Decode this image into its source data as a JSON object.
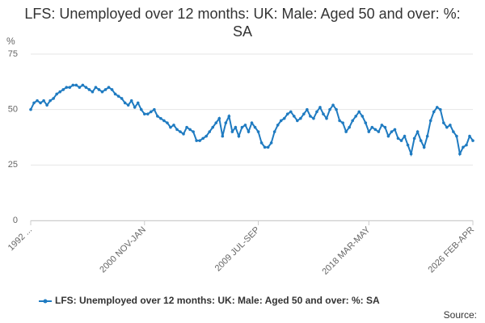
{
  "chart_data": {
    "type": "line",
    "title": "LFS: Unemployed over 12 months: UK: Male: Aged 50 and over: %: SA",
    "y_label": "%",
    "source": "Source:",
    "categories": [
      "1992 ...",
      null,
      null,
      null,
      null,
      null,
      null,
      null,
      null,
      null,
      null,
      null,
      null,
      null,
      null,
      null,
      null,
      null,
      null,
      null,
      null,
      null,
      null,
      null,
      null,
      null,
      null,
      null,
      null,
      null,
      null,
      null,
      null,
      null,
      null,
      "2000 NOV-JAN",
      null,
      null,
      null,
      null,
      null,
      null,
      null,
      null,
      null,
      null,
      null,
      null,
      null,
      null,
      null,
      null,
      null,
      null,
      null,
      null,
      null,
      null,
      null,
      null,
      null,
      null,
      null,
      null,
      null,
      null,
      null,
      null,
      null,
      null,
      "2009 JUL-SEP",
      null,
      null,
      null,
      null,
      null,
      null,
      null,
      null,
      null,
      null,
      null,
      null,
      null,
      null,
      null,
      null,
      null,
      null,
      null,
      null,
      null,
      null,
      null,
      null,
      null,
      null,
      null,
      null,
      null,
      null,
      null,
      null,
      null,
      "2018 MAR-MAY",
      null,
      null,
      null,
      null,
      null,
      null,
      null,
      null,
      null,
      null,
      null,
      null,
      null,
      null,
      null,
      null,
      null,
      null,
      null,
      null,
      null,
      null,
      null,
      null,
      null,
      null,
      null,
      null,
      null,
      null,
      null,
      "2026 FEB-APR"
    ],
    "series": [
      {
        "name": "LFS: Unemployed over 12 months: UK: Male: Aged 50 and over: %: SA",
        "color": "#1f7bc1",
        "values": [
          50,
          53,
          54,
          53,
          54,
          52,
          54,
          55,
          57,
          58,
          59,
          60,
          60,
          61,
          61,
          60,
          61,
          60,
          59,
          58,
          60,
          59,
          58,
          59,
          60,
          59,
          57,
          56,
          55,
          53,
          52,
          54,
          51,
          53,
          50,
          48,
          48,
          49,
          50,
          47,
          46,
          45,
          44,
          42,
          43,
          41,
          40,
          39,
          42,
          41,
          40,
          36,
          36,
          37,
          38,
          40,
          42,
          44,
          46,
          38,
          44,
          47,
          40,
          42,
          38,
          42,
          43,
          40,
          44,
          42,
          40,
          35,
          33,
          33,
          35,
          40,
          43,
          45,
          46,
          48,
          49,
          47,
          45,
          46,
          48,
          50,
          47,
          46,
          49,
          51,
          48,
          46,
          50,
          52,
          50,
          45,
          44,
          40,
          42,
          45,
          47,
          49,
          47,
          44,
          40,
          42,
          41,
          40,
          43,
          42,
          38,
          40,
          41,
          37,
          36,
          38,
          34,
          30,
          37,
          40,
          36,
          33,
          38,
          45,
          49,
          51,
          50,
          44,
          42,
          43,
          40,
          38,
          30,
          33,
          34,
          38,
          36
        ]
      }
    ],
    "ylim": [
      0,
      75
    ],
    "yticks": [
      0,
      25,
      50,
      75
    ],
    "grid": true,
    "legend": "bottom"
  }
}
